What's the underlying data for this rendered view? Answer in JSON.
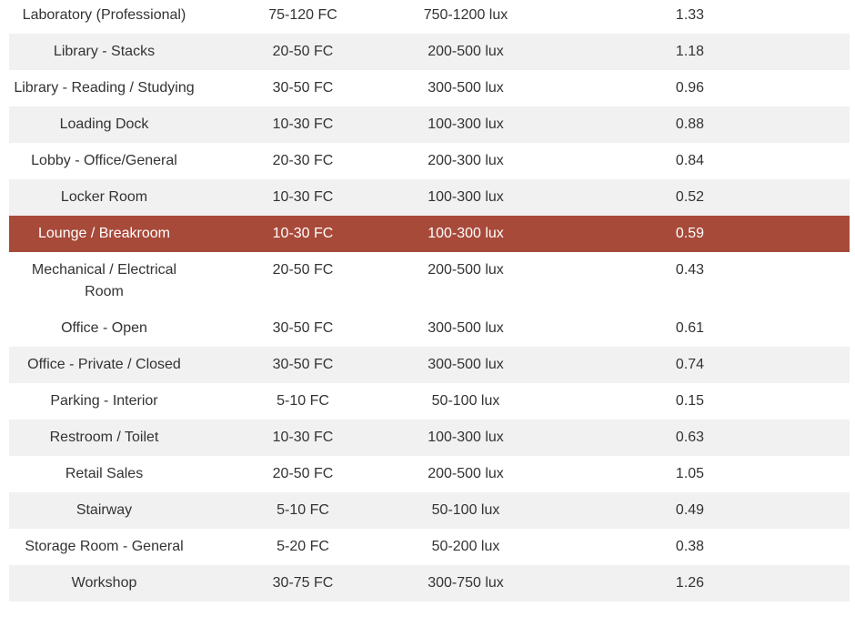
{
  "rows": [
    {
      "space": "Laboratory (Professional)",
      "fc": "75-120 FC",
      "lux": "750-1200 lux",
      "ratio": "1.33"
    },
    {
      "space": "Library - Stacks",
      "fc": "20-50 FC",
      "lux": "200-500 lux",
      "ratio": "1.18"
    },
    {
      "space": "Library - Reading / Studying",
      "fc": "30-50 FC",
      "lux": "300-500 lux",
      "ratio": "0.96"
    },
    {
      "space": "Loading Dock",
      "fc": "10-30 FC",
      "lux": "100-300 lux",
      "ratio": "0.88"
    },
    {
      "space": "Lobby - Office/General",
      "fc": "20-30 FC",
      "lux": "200-300 lux",
      "ratio": "0.84"
    },
    {
      "space": "Locker Room",
      "fc": "10-30 FC",
      "lux": "100-300 lux",
      "ratio": "0.52"
    },
    {
      "space": "Lounge / Breakroom",
      "fc": "10-30 FC",
      "lux": "100-300 lux",
      "ratio": "0.59"
    },
    {
      "space": "Mechanical / Electrical Room",
      "fc": "20-50 FC",
      "lux": "200-500 lux",
      "ratio": "0.43"
    },
    {
      "space": "Office - Open",
      "fc": "30-50 FC",
      "lux": "300-500 lux",
      "ratio": "0.61"
    },
    {
      "space": "Office - Private / Closed",
      "fc": "30-50 FC",
      "lux": "300-500 lux",
      "ratio": "0.74"
    },
    {
      "space": "Parking - Interior",
      "fc": "5-10 FC",
      "lux": "50-100 lux",
      "ratio": "0.15"
    },
    {
      "space": "Restroom / Toilet",
      "fc": "10-30 FC",
      "lux": "100-300 lux",
      "ratio": "0.63"
    },
    {
      "space": "Retail Sales",
      "fc": "20-50 FC",
      "lux": "200-500 lux",
      "ratio": "1.05"
    },
    {
      "space": "Stairway",
      "fc": "5-10 FC",
      "lux": "50-100 lux",
      "ratio": "0.49"
    },
    {
      "space": "Storage Room - General",
      "fc": "5-20 FC",
      "lux": "50-200 lux",
      "ratio": "0.38"
    },
    {
      "space": "Workshop",
      "fc": "30-75 FC",
      "lux": "300-750 lux",
      "ratio": "1.26"
    }
  ],
  "highlight": {
    "row": "Lounge / Breakroom",
    "color": "#a84a3a"
  },
  "shade_color": "#f1f1f1"
}
